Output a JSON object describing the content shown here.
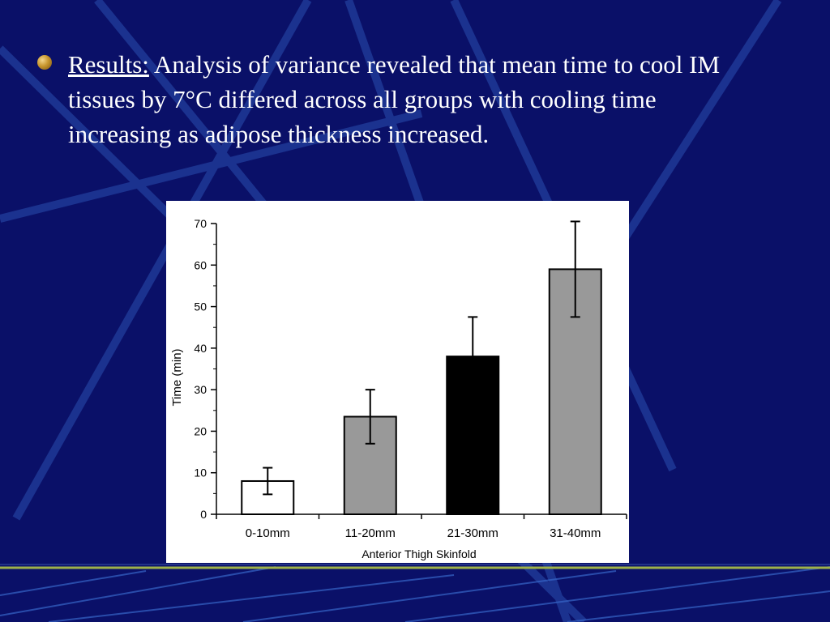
{
  "slide": {
    "label": "Results:",
    "body": " Analysis of variance revealed that mean time to cool IM tissues by 7°C differed across all groups with cooling time increasing as adipose thickness increased."
  },
  "chart_data": {
    "type": "bar",
    "categories": [
      "0-10mm",
      "11-20mm",
      "21-30mm",
      "31-40mm"
    ],
    "values": [
      8,
      23.5,
      38,
      59
    ],
    "errors": [
      3.2,
      6.5,
      9.5,
      11.5
    ],
    "bar_colors": [
      "#ffffff",
      "#999999",
      "#000000",
      "#999999"
    ],
    "xlabel": "Anterior Thigh Skinfold",
    "ylabel": "Time (min)",
    "ylim": [
      0,
      70
    ],
    "yticks": [
      0,
      10,
      20,
      30,
      40,
      50,
      60,
      70
    ],
    "grid": false
  },
  "colors": {
    "background": "#0a1068",
    "text": "#ffffff",
    "bullet": "#c8962e"
  }
}
